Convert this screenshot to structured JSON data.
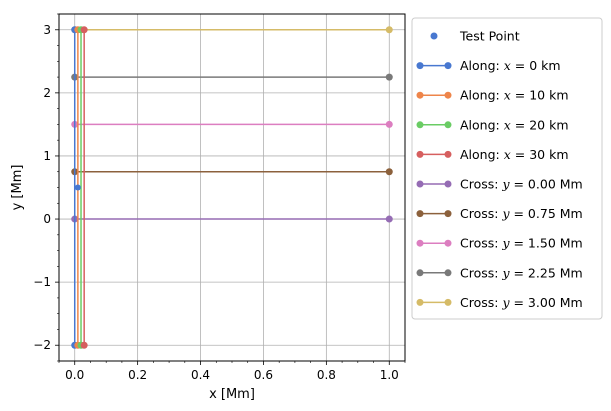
{
  "chart_data": {
    "type": "line",
    "xlabel": "x [Mm]",
    "ylabel": "y [Mm]",
    "xlim": [
      -0.05,
      1.05
    ],
    "ylim": [
      -2.25,
      3.25
    ],
    "x_ticks": [
      "0.0",
      "0.2",
      "0.4",
      "0.6",
      "0.8",
      "1.0"
    ],
    "y_ticks": [
      "−2",
      "−1",
      "0",
      "1",
      "2",
      "3"
    ],
    "grid": true,
    "legend_position": "right outside",
    "test_point": {
      "name": "Test Point",
      "x": 0.01,
      "y": 0.5,
      "color": "#4878d0"
    },
    "along": [
      {
        "name": "Along: x = 0 km",
        "prefix": "Along: ",
        "var": "x",
        "rest": " = 0 km",
        "x": 0.0,
        "y": [
          -2.0,
          3.0
        ],
        "color": "#4878d0"
      },
      {
        "name": "Along: x = 10 km",
        "prefix": "Along: ",
        "var": "x",
        "rest": " = 10 km",
        "x": 0.01,
        "y": [
          -2.0,
          3.0
        ],
        "color": "#ee854a"
      },
      {
        "name": "Along: x = 20 km",
        "prefix": "Along: ",
        "var": "x",
        "rest": " = 20 km",
        "x": 0.02,
        "y": [
          -2.0,
          3.0
        ],
        "color": "#6acc64"
      },
      {
        "name": "Along: x = 30 km",
        "prefix": "Along: ",
        "var": "x",
        "rest": " = 30 km",
        "x": 0.03,
        "y": [
          -2.0,
          3.0
        ],
        "color": "#d65f5f"
      }
    ],
    "cross": [
      {
        "name": "Cross: y = 0.00 Mm",
        "prefix": "Cross: ",
        "var": "y",
        "rest": " = 0.00 Mm",
        "y": 0.0,
        "x": [
          0.0,
          1.0
        ],
        "color": "#956cb4"
      },
      {
        "name": "Cross: y = 0.75 Mm",
        "prefix": "Cross: ",
        "var": "y",
        "rest": " = 0.75 Mm",
        "y": 0.75,
        "x": [
          0.0,
          1.0
        ],
        "color": "#8c613c"
      },
      {
        "name": "Cross: y = 1.50 Mm",
        "prefix": "Cross: ",
        "var": "y",
        "rest": " = 1.50 Mm",
        "y": 1.5,
        "x": [
          0.0,
          1.0
        ],
        "color": "#dc7ec0"
      },
      {
        "name": "Cross: y = 2.25 Mm",
        "prefix": "Cross: ",
        "var": "y",
        "rest": " = 2.25 Mm",
        "y": 2.25,
        "x": [
          0.0,
          1.0
        ],
        "color": "#797979"
      },
      {
        "name": "Cross: y = 3.00 Mm",
        "prefix": "Cross: ",
        "var": "y",
        "rest": " = 3.00 Mm",
        "y": 3.0,
        "x": [
          0.0,
          1.0
        ],
        "color": "#d5bb67"
      }
    ]
  }
}
